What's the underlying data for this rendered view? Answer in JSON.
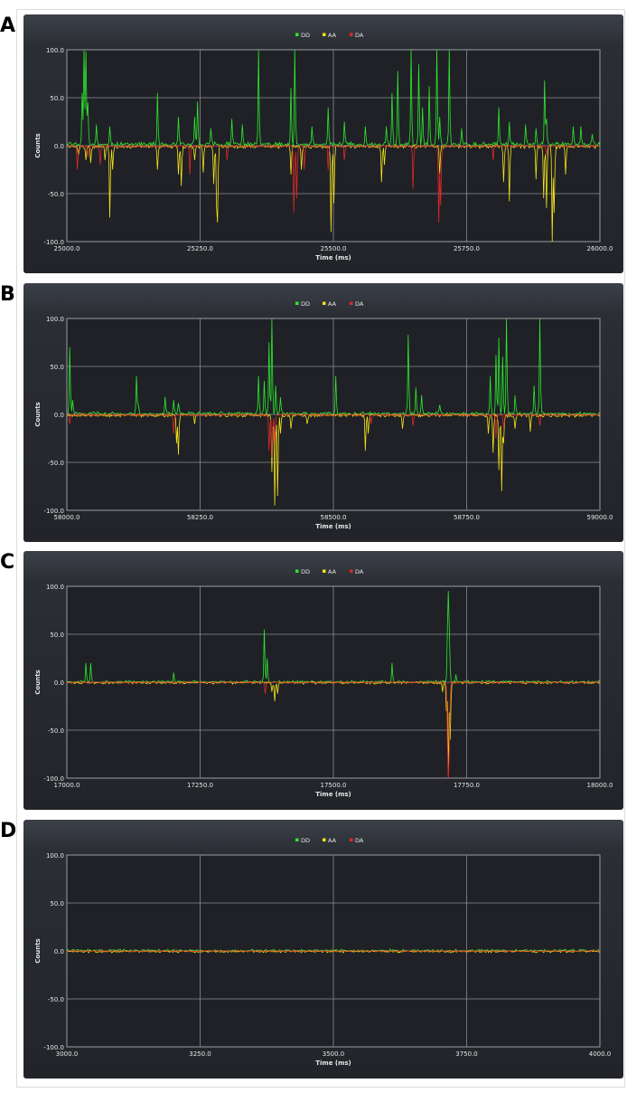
{
  "legend": [
    {
      "name": "DD",
      "color": "#2ee82e"
    },
    {
      "name": "AA",
      "color": "#f4e21a"
    },
    {
      "name": "DA",
      "color": "#e02828"
    }
  ],
  "colors": {
    "DD": "#2ee82e",
    "AA": "#f4e21a",
    "DA": "#e02828",
    "grid": "#8a8d94",
    "text": "#e6e6e6"
  },
  "chart_data": [
    {
      "panel": "A",
      "type": "line",
      "seed": 11,
      "xlabel": "Time (ms)",
      "ylabel": "Counts",
      "xlim": [
        25000,
        26000
      ],
      "ylim": [
        -100,
        100
      ],
      "xticks": [
        "25000.0",
        "25250.0",
        "25500.0",
        "25750.0",
        "26000.0"
      ],
      "yticks": [
        "100.0",
        "50.0",
        "0.0",
        "-50.0",
        "-100.0"
      ],
      "grid": true,
      "legend_position": "top-center",
      "series": [
        {
          "name": "DD",
          "baseline_noise": 4,
          "spikes": [
            [
              25028,
              55
            ],
            [
              25032,
              100
            ],
            [
              25036,
              98
            ],
            [
              25040,
              45
            ],
            [
              25055,
              22
            ],
            [
              25080,
              20
            ],
            [
              25170,
              55
            ],
            [
              25210,
              30
            ],
            [
              25240,
              30
            ],
            [
              25245,
              46
            ],
            [
              25270,
              18
            ],
            [
              25310,
              28
            ],
            [
              25330,
              22
            ],
            [
              25360,
              100
            ],
            [
              25420,
              60
            ],
            [
              25428,
              100
            ],
            [
              25460,
              20
            ],
            [
              25490,
              40
            ],
            [
              25520,
              25
            ],
            [
              25560,
              20
            ],
            [
              25600,
              20
            ],
            [
              25610,
              55
            ],
            [
              25620,
              78
            ],
            [
              25645,
              100
            ],
            [
              25660,
              85
            ],
            [
              25668,
              40
            ],
            [
              25680,
              62
            ],
            [
              25694,
              100
            ],
            [
              25700,
              30
            ],
            [
              25718,
              100
            ],
            [
              25740,
              18
            ],
            [
              25810,
              40
            ],
            [
              25830,
              25
            ],
            [
              25860,
              22
            ],
            [
              25880,
              18
            ],
            [
              25896,
              68
            ],
            [
              25900,
              28
            ],
            [
              25950,
              20
            ],
            [
              25965,
              20
            ],
            [
              25985,
              12
            ]
          ]
        },
        {
          "name": "AA",
          "baseline_noise": 3,
          "spikes": [
            [
              25022,
              -10
            ],
            [
              25035,
              -15
            ],
            [
              25044,
              -18
            ],
            [
              25072,
              -15
            ],
            [
              25080,
              -75
            ],
            [
              25085,
              -25
            ],
            [
              25170,
              -25
            ],
            [
              25210,
              -30
            ],
            [
              25215,
              -42
            ],
            [
              25240,
              -15
            ],
            [
              25255,
              -28
            ],
            [
              25275,
              -40
            ],
            [
              25280,
              -55
            ],
            [
              25283,
              -80
            ],
            [
              25420,
              -30
            ],
            [
              25440,
              -25
            ],
            [
              25495,
              -90
            ],
            [
              25500,
              -60
            ],
            [
              25590,
              -38
            ],
            [
              25595,
              -20
            ],
            [
              25700,
              -30
            ],
            [
              25820,
              -38
            ],
            [
              25830,
              -58
            ],
            [
              25880,
              -35
            ],
            [
              25895,
              -55
            ],
            [
              25900,
              -65
            ],
            [
              25910,
              -100
            ],
            [
              25915,
              -70
            ],
            [
              25935,
              -30
            ]
          ]
        },
        {
          "name": "DA",
          "baseline_noise": 2,
          "spikes": [
            [
              25020,
              -25
            ],
            [
              25040,
              -12
            ],
            [
              25062,
              -20
            ],
            [
              25230,
              -30
            ],
            [
              25300,
              -15
            ],
            [
              25425,
              -70
            ],
            [
              25432,
              -55
            ],
            [
              25445,
              -25
            ],
            [
              25490,
              -25
            ],
            [
              25520,
              -15
            ],
            [
              25650,
              -45
            ],
            [
              25698,
              -80
            ],
            [
              25702,
              -62
            ],
            [
              25800,
              -15
            ],
            [
              25900,
              -10
            ]
          ]
        }
      ]
    },
    {
      "panel": "B",
      "type": "line",
      "seed": 23,
      "xlabel": "Time (ms)",
      "ylabel": "Counts",
      "xlim": [
        58000,
        59000
      ],
      "ylim": [
        -100,
        100
      ],
      "xticks": [
        "58000.0",
        "58250.0",
        "58500.0",
        "58750.0",
        "59000.0"
      ],
      "yticks": [
        "100.0",
        "50.0",
        "0.0",
        "-50.0",
        "-100.0"
      ],
      "grid": true,
      "legend_position": "top-center",
      "series": [
        {
          "name": "DD",
          "baseline_noise": 3,
          "spikes": [
            [
              58005,
              70
            ],
            [
              58010,
              15
            ],
            [
              58130,
              40
            ],
            [
              58135,
              10
            ],
            [
              58185,
              18
            ],
            [
              58200,
              15
            ],
            [
              58210,
              12
            ],
            [
              58360,
              40
            ],
            [
              58370,
              35
            ],
            [
              58380,
              75
            ],
            [
              58385,
              100
            ],
            [
              58392,
              30
            ],
            [
              58400,
              18
            ],
            [
              58505,
              40
            ],
            [
              58640,
              83
            ],
            [
              58655,
              28
            ],
            [
              58665,
              20
            ],
            [
              58700,
              10
            ],
            [
              58795,
              40
            ],
            [
              58805,
              62
            ],
            [
              58810,
              80
            ],
            [
              58818,
              60
            ],
            [
              58825,
              100
            ],
            [
              58840,
              20
            ],
            [
              58877,
              30
            ],
            [
              58887,
              100
            ]
          ]
        },
        {
          "name": "AA",
          "baseline_noise": 3,
          "spikes": [
            [
              58205,
              -30
            ],
            [
              58210,
              -42
            ],
            [
              58240,
              -10
            ],
            [
              58385,
              -60
            ],
            [
              58390,
              -95
            ],
            [
              58395,
              -85
            ],
            [
              58400,
              -20
            ],
            [
              58420,
              -15
            ],
            [
              58450,
              -10
            ],
            [
              58560,
              -38
            ],
            [
              58565,
              -20
            ],
            [
              58630,
              -15
            ],
            [
              58790,
              -20
            ],
            [
              58800,
              -40
            ],
            [
              58810,
              -58
            ],
            [
              58815,
              -80
            ],
            [
              58820,
              -30
            ],
            [
              58840,
              -15
            ],
            [
              58870,
              -18
            ]
          ]
        },
        {
          "name": "DA",
          "baseline_noise": 2,
          "spikes": [
            [
              58005,
              -10
            ],
            [
              58200,
              -20
            ],
            [
              58380,
              -38
            ],
            [
              58385,
              -45
            ],
            [
              58390,
              -30
            ],
            [
              58570,
              -10
            ],
            [
              58650,
              -12
            ],
            [
              58805,
              -25
            ],
            [
              58820,
              -15
            ],
            [
              58887,
              -12
            ]
          ]
        }
      ]
    },
    {
      "panel": "C",
      "type": "line",
      "seed": 37,
      "xlabel": "Time (ms)",
      "ylabel": "Counts",
      "xlim": [
        17000,
        18000
      ],
      "ylim": [
        -100,
        100
      ],
      "xticks": [
        "17000.0",
        "17250.0",
        "17500.0",
        "17750.0",
        "18000.0"
      ],
      "yticks": [
        "100.0",
        "50.0",
        "0.0",
        "-50.0",
        "-100.0"
      ],
      "grid": true,
      "legend_position": "top-center",
      "series": [
        {
          "name": "DD",
          "baseline_noise": 2,
          "spikes": [
            [
              17035,
              20
            ],
            [
              17045,
              20
            ],
            [
              17200,
              10
            ],
            [
              17370,
              55
            ],
            [
              17375,
              25
            ],
            [
              17610,
              20
            ],
            [
              17713,
              40
            ],
            [
              17715,
              88
            ],
            [
              17718,
              60
            ],
            [
              17730,
              8
            ]
          ]
        },
        {
          "name": "AA",
          "baseline_noise": 2,
          "spikes": [
            [
              17385,
              -10
            ],
            [
              17390,
              -20
            ],
            [
              17395,
              -12
            ],
            [
              17705,
              -10
            ],
            [
              17712,
              -30
            ],
            [
              17716,
              -95
            ],
            [
              17720,
              -60
            ]
          ]
        },
        {
          "name": "DA",
          "baseline_noise": 1,
          "spikes": [
            [
              17372,
              -12
            ],
            [
              17713,
              -40
            ],
            [
              17716,
              -100
            ],
            [
              17718,
              -70
            ]
          ]
        }
      ]
    },
    {
      "panel": "D",
      "type": "line",
      "seed": 51,
      "xlabel": "Time (ms)",
      "ylabel": "Counts",
      "xlim": [
        3000,
        4000
      ],
      "ylim": [
        -100,
        100
      ],
      "xticks": [
        "3000.0",
        "3250.0",
        "3500.0",
        "3750.0",
        "4000.0"
      ],
      "yticks": [
        "100.0",
        "50.0",
        "0.0",
        "-50.0",
        "-100.0"
      ],
      "grid": true,
      "legend_position": "top-center",
      "series": [
        {
          "name": "DD",
          "baseline_noise": 2,
          "spikes": []
        },
        {
          "name": "AA",
          "baseline_noise": 2,
          "spikes": []
        },
        {
          "name": "DA",
          "baseline_noise": 1,
          "spikes": []
        }
      ]
    }
  ]
}
